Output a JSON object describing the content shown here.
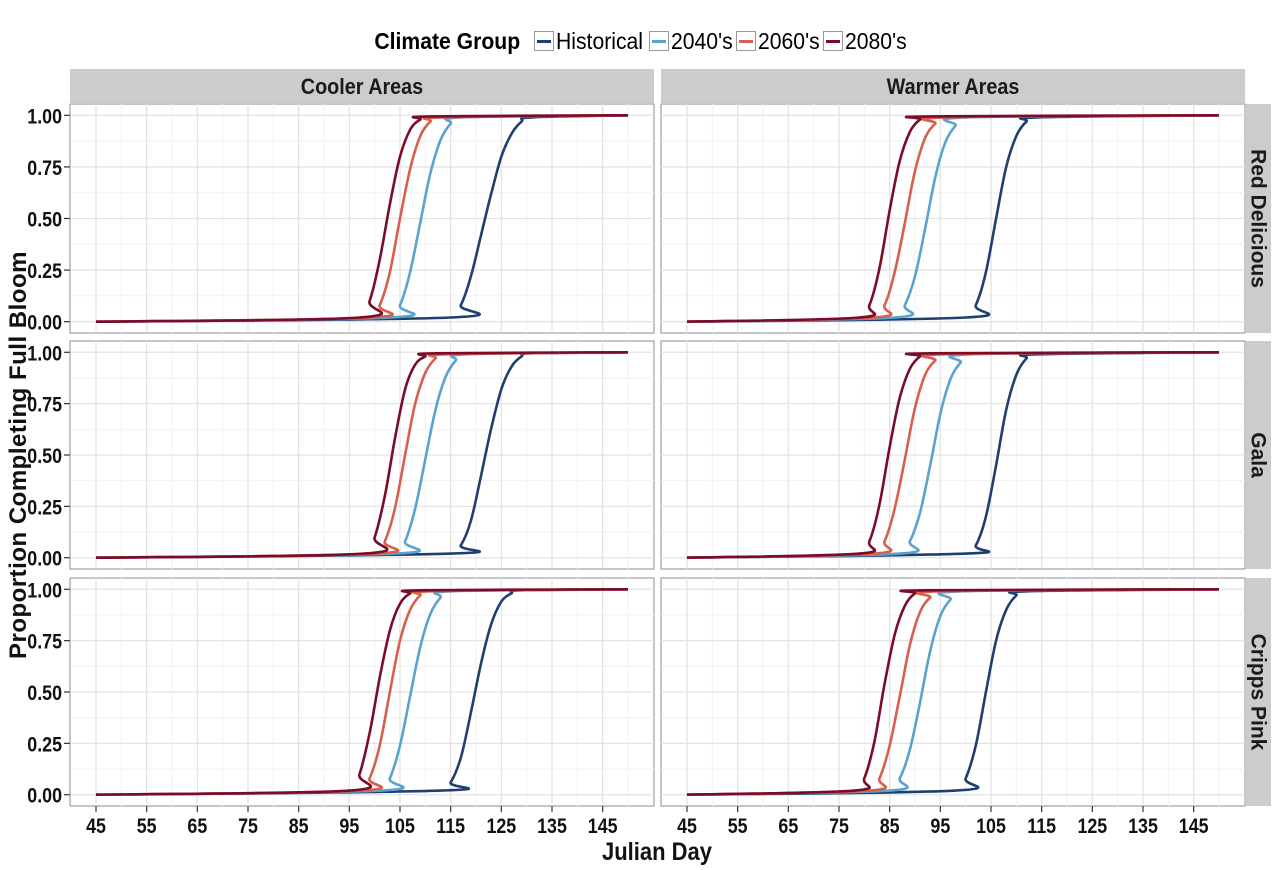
{
  "legend": {
    "title": "Climate Group",
    "items": [
      {
        "label": "Historical",
        "color": "#1f3f6e"
      },
      {
        "label": "2040's",
        "color": "#5ba3cf"
      },
      {
        "label": "2060's",
        "color": "#d6604d"
      },
      {
        "label": "2080's",
        "color": "#7a0c2a"
      }
    ]
  },
  "chart_data": {
    "type": "line",
    "xlabel": "Julian Day",
    "ylabel": "Proportion Completing Full Bloom",
    "xlim": [
      45,
      150
    ],
    "ylim": [
      0,
      1
    ],
    "x_ticks": [
      45,
      55,
      65,
      75,
      85,
      95,
      105,
      115,
      125,
      135,
      145
    ],
    "y_ticks": [
      "0.00",
      "0.25",
      "0.50",
      "0.75",
      "1.00"
    ],
    "column_facets": [
      "Cooler Areas",
      "Warmer Areas"
    ],
    "row_facets": [
      "Red Delicious",
      "Gala",
      "Cripps Pink"
    ],
    "grid": true,
    "legend_position": "top",
    "series_names": [
      "Historical",
      "2040's",
      "2060's",
      "2080's"
    ],
    "panels": [
      {
        "column": "Cooler Areas",
        "row": "Red Delicious",
        "series": [
          {
            "name": "Historical",
            "x": [
              45,
              115,
              117,
              119,
              121,
              123,
              125,
              127,
              129,
              131,
              150
            ],
            "y": [
              0,
              0.02,
              0.08,
              0.22,
              0.42,
              0.62,
              0.8,
              0.91,
              0.97,
              0.99,
              1
            ]
          },
          {
            "name": "2040's",
            "x": [
              45,
              103,
              105,
              107,
              109,
              111,
              113,
              115,
              117,
              150
            ],
            "y": [
              0,
              0.02,
              0.08,
              0.24,
              0.48,
              0.72,
              0.88,
              0.96,
              0.99,
              1
            ]
          },
          {
            "name": "2060's",
            "x": [
              45,
              99,
              101,
              103,
              105,
              107,
              109,
              111,
              113,
              150
            ],
            "y": [
              0,
              0.02,
              0.08,
              0.24,
              0.5,
              0.74,
              0.9,
              0.97,
              0.99,
              1
            ]
          },
          {
            "name": "2080's",
            "x": [
              45,
              97,
              99,
              101,
              103,
              105,
              107,
              109,
              111,
              150
            ],
            "y": [
              0,
              0.02,
              0.1,
              0.3,
              0.57,
              0.8,
              0.93,
              0.98,
              0.995,
              1
            ]
          }
        ]
      },
      {
        "column": "Warmer Areas",
        "row": "Red Delicious",
        "series": [
          {
            "name": "Historical",
            "x": [
              45,
              100,
              102,
              104,
              106,
              108,
              110,
              112,
              114,
              150
            ],
            "y": [
              0,
              0.02,
              0.08,
              0.24,
              0.5,
              0.75,
              0.9,
              0.97,
              0.99,
              1
            ]
          },
          {
            "name": "2040's",
            "x": [
              45,
              86,
              88,
              90,
              92,
              94,
              96,
              98,
              100,
              150
            ],
            "y": [
              0,
              0.02,
              0.08,
              0.22,
              0.45,
              0.7,
              0.87,
              0.95,
              0.99,
              1
            ]
          },
          {
            "name": "2060's",
            "x": [
              45,
              82,
              84,
              86,
              88,
              90,
              92,
              94,
              96,
              150
            ],
            "y": [
              0,
              0.02,
              0.08,
              0.24,
              0.48,
              0.73,
              0.89,
              0.96,
              0.99,
              1
            ]
          },
          {
            "name": "2080's",
            "x": [
              45,
              79,
              81,
              83,
              85,
              87,
              89,
              91,
              93,
              150
            ],
            "y": [
              0,
              0.02,
              0.08,
              0.26,
              0.54,
              0.78,
              0.92,
              0.98,
              0.995,
              1
            ]
          }
        ]
      },
      {
        "column": "Cooler Areas",
        "row": "Gala",
        "series": [
          {
            "name": "Historical",
            "x": [
              45,
              115,
              117,
              119,
              121,
              123,
              125,
              127,
              129,
              131,
              150
            ],
            "y": [
              0,
              0.02,
              0.06,
              0.18,
              0.4,
              0.63,
              0.82,
              0.93,
              0.98,
              0.995,
              1
            ]
          },
          {
            "name": "2040's",
            "x": [
              45,
              104,
              106,
              108,
              110,
              112,
              114,
              116,
              118,
              150
            ],
            "y": [
              0,
              0.02,
              0.08,
              0.24,
              0.48,
              0.72,
              0.88,
              0.96,
              0.99,
              1
            ]
          },
          {
            "name": "2060's",
            "x": [
              45,
              100,
              102,
              104,
              106,
              108,
              110,
              112,
              114,
              150
            ],
            "y": [
              0,
              0.02,
              0.08,
              0.24,
              0.5,
              0.75,
              0.9,
              0.97,
              0.99,
              1
            ]
          },
          {
            "name": "2080's",
            "x": [
              45,
              98,
              100,
              102,
              104,
              106,
              108,
              110,
              112,
              150
            ],
            "y": [
              0,
              0.02,
              0.1,
              0.3,
              0.58,
              0.82,
              0.94,
              0.98,
              0.995,
              1
            ]
          }
        ]
      },
      {
        "column": "Warmer Areas",
        "row": "Gala",
        "series": [
          {
            "name": "Historical",
            "x": [
              45,
              100,
              102,
              104,
              106,
              108,
              110,
              112,
              114,
              150
            ],
            "y": [
              0,
              0.02,
              0.06,
              0.2,
              0.45,
              0.72,
              0.89,
              0.97,
              0.99,
              1
            ]
          },
          {
            "name": "2040's",
            "x": [
              45,
              87,
              89,
              91,
              93,
              95,
              97,
              99,
              101,
              150
            ],
            "y": [
              0,
              0.02,
              0.08,
              0.22,
              0.45,
              0.7,
              0.87,
              0.95,
              0.99,
              1
            ]
          },
          {
            "name": "2060's",
            "x": [
              45,
              82,
              84,
              86,
              88,
              90,
              92,
              94,
              96,
              150
            ],
            "y": [
              0,
              0.02,
              0.08,
              0.24,
              0.48,
              0.73,
              0.89,
              0.96,
              0.99,
              1
            ]
          },
          {
            "name": "2080's",
            "x": [
              45,
              79,
              81,
              83,
              85,
              87,
              89,
              91,
              93,
              150
            ],
            "y": [
              0,
              0.02,
              0.08,
              0.26,
              0.54,
              0.78,
              0.92,
              0.98,
              0.995,
              1
            ]
          }
        ]
      },
      {
        "column": "Cooler Areas",
        "row": "Cripps Pink",
        "series": [
          {
            "name": "Historical",
            "x": [
              45,
              113,
              115,
              117,
              119,
              121,
              123,
              125,
              127,
              129,
              150
            ],
            "y": [
              0,
              0.02,
              0.06,
              0.18,
              0.4,
              0.64,
              0.83,
              0.94,
              0.98,
              0.995,
              1
            ]
          },
          {
            "name": "2040's",
            "x": [
              45,
              101,
              103,
              105,
              107,
              109,
              111,
              113,
              115,
              150
            ],
            "y": [
              0,
              0.02,
              0.08,
              0.24,
              0.48,
              0.72,
              0.88,
              0.96,
              0.99,
              1
            ]
          },
          {
            "name": "2060's",
            "x": [
              45,
              97,
              99,
              101,
              103,
              105,
              107,
              109,
              111,
              150
            ],
            "y": [
              0,
              0.02,
              0.08,
              0.24,
              0.5,
              0.75,
              0.9,
              0.97,
              0.99,
              1
            ]
          },
          {
            "name": "2080's",
            "x": [
              45,
              95,
              97,
              99,
              101,
              103,
              105,
              107,
              109,
              150
            ],
            "y": [
              0,
              0.02,
              0.1,
              0.3,
              0.57,
              0.8,
              0.93,
              0.98,
              0.995,
              1
            ]
          }
        ]
      },
      {
        "column": "Warmer Areas",
        "row": "Cripps Pink",
        "series": [
          {
            "name": "Historical",
            "x": [
              45,
              98,
              100,
              102,
              104,
              106,
              108,
              110,
              112,
              150
            ],
            "y": [
              0,
              0.02,
              0.08,
              0.24,
              0.5,
              0.75,
              0.9,
              0.97,
              0.99,
              1
            ]
          },
          {
            "name": "2040's",
            "x": [
              45,
              85,
              87,
              89,
              91,
              93,
              95,
              97,
              99,
              150
            ],
            "y": [
              0,
              0.02,
              0.08,
              0.22,
              0.45,
              0.7,
              0.87,
              0.95,
              0.99,
              1
            ]
          },
          {
            "name": "2060's",
            "x": [
              45,
              81,
              83,
              85,
              87,
              89,
              91,
              93,
              95,
              150
            ],
            "y": [
              0,
              0.02,
              0.08,
              0.24,
              0.48,
              0.73,
              0.89,
              0.96,
              0.99,
              1
            ]
          },
          {
            "name": "2080's",
            "x": [
              45,
              78,
              80,
              82,
              84,
              86,
              88,
              90,
              92,
              150
            ],
            "y": [
              0,
              0.02,
              0.08,
              0.26,
              0.54,
              0.78,
              0.92,
              0.98,
              0.995,
              1
            ]
          }
        ]
      }
    ]
  }
}
